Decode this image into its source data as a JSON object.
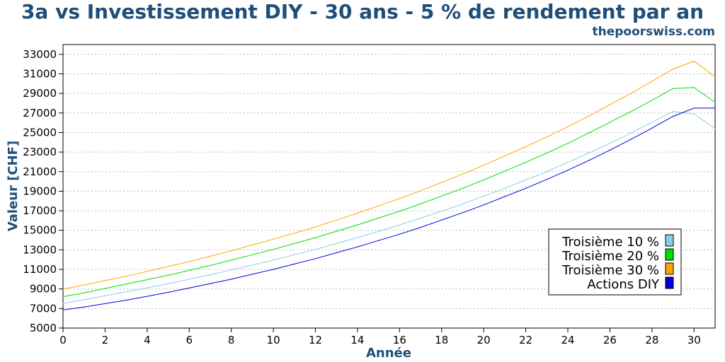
{
  "header": {
    "title": "3a vs Investissement DIY - 30 ans - 5 % de rendement par an",
    "subtitle": "thepoorswiss.com"
  },
  "colors": {
    "title": "#1f4e79",
    "grid": "#bbbbbb"
  },
  "chart_data": {
    "type": "line",
    "title": "3a vs Investissement DIY - 30 ans - 5 % de rendement par an",
    "subtitle": "thepoorswiss.com",
    "xlabel": "Année",
    "ylabel": "Valeur [CHF]",
    "xlim": [
      0,
      31
    ],
    "ylim": [
      5000,
      34000
    ],
    "x_ticks": [
      0,
      2,
      4,
      6,
      8,
      10,
      12,
      14,
      16,
      18,
      20,
      22,
      24,
      26,
      28,
      30
    ],
    "y_ticks": [
      5000,
      7000,
      9000,
      11000,
      13000,
      15000,
      17000,
      19000,
      21000,
      23000,
      25000,
      27000,
      29000,
      31000,
      33000
    ],
    "grid": "horizontal dotted",
    "legend_position": "right",
    "x": [
      0,
      1,
      2,
      3,
      4,
      5,
      6,
      7,
      8,
      9,
      10,
      11,
      12,
      13,
      14,
      15,
      16,
      17,
      18,
      19,
      20,
      21,
      22,
      23,
      24,
      25,
      26,
      27,
      28,
      29,
      30,
      31
    ],
    "series": [
      {
        "name": "Troisième 10 %",
        "color": "#87ceeb",
        "values": [
          7500,
          7900,
          8300,
          8700,
          9100,
          9550,
          10000,
          10450,
          10950,
          11450,
          11950,
          12500,
          13050,
          13650,
          14250,
          14900,
          15550,
          16250,
          16950,
          17700,
          18500,
          19300,
          20150,
          21000,
          21950,
          22900,
          23900,
          24950,
          26050,
          27150,
          26900,
          25400
        ]
      },
      {
        "name": "Troisième 20 %",
        "color": "#00dd00",
        "values": [
          8200,
          8600,
          9050,
          9500,
          9950,
          10400,
          10900,
          11400,
          11950,
          12500,
          13050,
          13650,
          14250,
          14900,
          15550,
          16250,
          16950,
          17700,
          18500,
          19300,
          20150,
          21050,
          21950,
          22900,
          23900,
          24950,
          26050,
          27150,
          28300,
          29500,
          29600,
          28100
        ]
      },
      {
        "name": "Troisième 30 %",
        "color": "#ffa500",
        "values": [
          9000,
          9400,
          9850,
          10300,
          10800,
          11300,
          11800,
          12350,
          12900,
          13500,
          14100,
          14700,
          15350,
          16050,
          16750,
          17500,
          18250,
          19050,
          19900,
          20750,
          21650,
          22600,
          23550,
          24550,
          25600,
          26700,
          27850,
          29000,
          30250,
          31500,
          32300,
          30700
        ]
      },
      {
        "name": "Actions DIY",
        "color": "#0000dd",
        "values": [
          6850,
          7150,
          7500,
          7850,
          8250,
          8650,
          9100,
          9550,
          10000,
          10500,
          11000,
          11550,
          12100,
          12700,
          13300,
          13950,
          14600,
          15300,
          16050,
          16800,
          17600,
          18450,
          19300,
          20200,
          21150,
          22150,
          23200,
          24300,
          25450,
          26650,
          27500,
          27500
        ]
      }
    ]
  }
}
